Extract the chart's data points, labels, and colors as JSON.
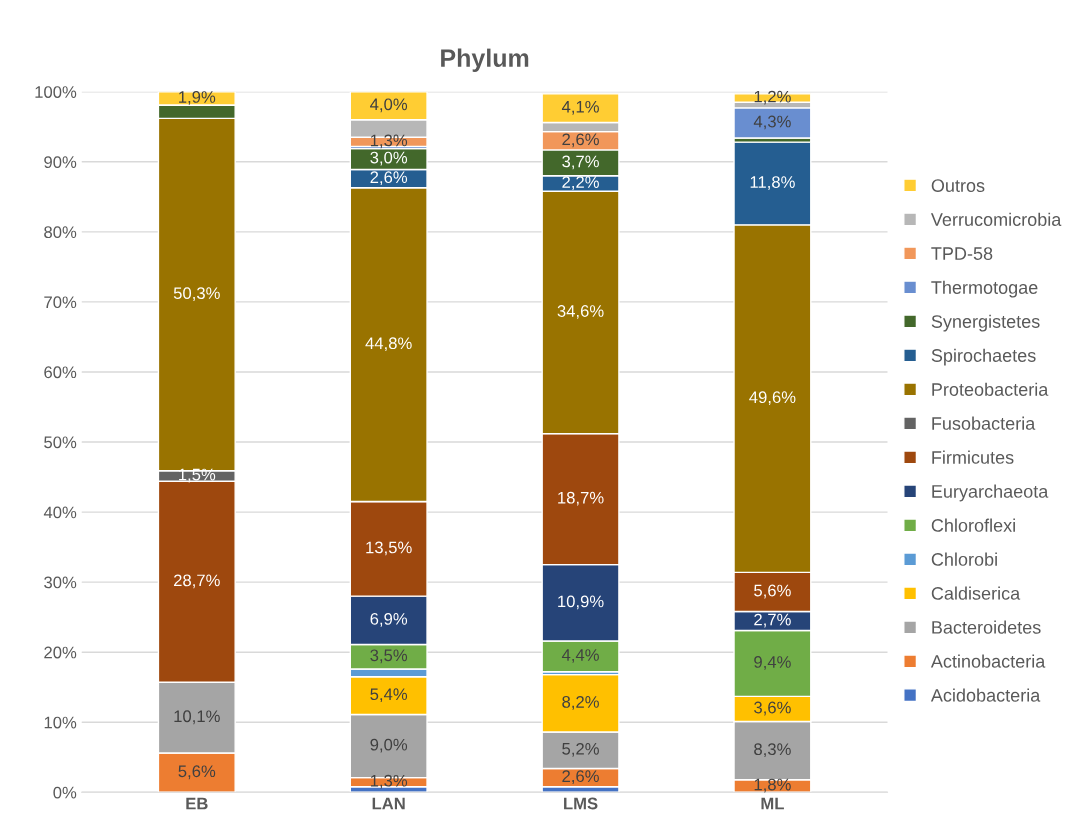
{
  "chart_data": {
    "type": "bar",
    "title": "Phylum",
    "stacked": true,
    "categories": [
      "EB",
      "LAN",
      "LMS",
      "ML"
    ],
    "ylim": [
      0,
      100
    ],
    "yticks": [
      {
        "value": 0,
        "label": "0%"
      },
      {
        "value": 10,
        "label": "10%"
      },
      {
        "value": 20,
        "label": "20%"
      },
      {
        "value": 30,
        "label": "30%"
      },
      {
        "value": 40,
        "label": "40%"
      },
      {
        "value": 50,
        "label": "50%"
      },
      {
        "value": 60,
        "label": "60%"
      },
      {
        "value": 70,
        "label": "70%"
      },
      {
        "value": 80,
        "label": "80%"
      },
      {
        "value": 90,
        "label": "90%"
      },
      {
        "value": 100,
        "label": "100%"
      }
    ],
    "grid": "y",
    "legend": "right",
    "series": [
      {
        "name": "Acidobacteria",
        "color": "#4472c4",
        "values": [
          0,
          0.8,
          0.8,
          0
        ],
        "value_labels": [
          null,
          null,
          null,
          null
        ]
      },
      {
        "name": "Actinobacteria",
        "color": "#ed7d31",
        "values": [
          5.6,
          1.3,
          2.6,
          1.8
        ],
        "value_labels": [
          "5,6%",
          "1,3%",
          "2,6%",
          "1,8%"
        ]
      },
      {
        "name": "Bacteroidetes",
        "color": "#a5a5a5",
        "values": [
          10.1,
          9.0,
          5.2,
          8.3
        ],
        "value_labels": [
          "10,1%",
          "9,0%",
          "5,2%",
          "8,3%"
        ]
      },
      {
        "name": "Caldiserica",
        "color": "#ffc000",
        "values": [
          0,
          5.4,
          8.2,
          3.6
        ],
        "value_labels": [
          null,
          "5,4%",
          "8,2%",
          "3,6%"
        ]
      },
      {
        "name": "Chlorobi",
        "color": "#5b9bd5",
        "values": [
          0,
          1.1,
          0.4,
          0
        ],
        "value_labels": [
          null,
          null,
          null,
          null
        ]
      },
      {
        "name": "Chloroflexi",
        "color": "#70ad47",
        "values": [
          0,
          3.5,
          4.4,
          9.4
        ],
        "value_labels": [
          null,
          "3,5%",
          "4,4%",
          "9,4%"
        ]
      },
      {
        "name": "Euryarchaeota",
        "color": "#264478",
        "values": [
          0,
          6.9,
          10.9,
          2.7
        ],
        "value_labels": [
          null,
          "6,9%",
          "10,9%",
          "2,7%"
        ]
      },
      {
        "name": "Firmicutes",
        "color": "#9e480e",
        "values": [
          28.7,
          13.5,
          18.7,
          5.6
        ],
        "value_labels": [
          "28,7%",
          "13,5%",
          "18,7%",
          "5,6%"
        ]
      },
      {
        "name": "Fusobacteria",
        "color": "#636363",
        "values": [
          1.5,
          0,
          0,
          0
        ],
        "value_labels": [
          "1,5%",
          null,
          null,
          null
        ]
      },
      {
        "name": "Proteobacteria",
        "color": "#997300",
        "values": [
          50.3,
          44.8,
          34.6,
          49.6
        ],
        "value_labels": [
          "50,3%",
          "44,8%",
          "34,6%",
          "49,6%"
        ]
      },
      {
        "name": "Spirochaetes",
        "color": "#255e91",
        "values": [
          0,
          2.6,
          2.2,
          11.8
        ],
        "value_labels": [
          null,
          "2,6%",
          "2,2%",
          "11,8%"
        ]
      },
      {
        "name": "Synergistetes",
        "color": "#43682b",
        "values": [
          1.9,
          3.0,
          3.7,
          0.6
        ],
        "value_labels": [
          null,
          "3,0%",
          "3,7%",
          null
        ]
      },
      {
        "name": "Thermotogae",
        "color": "#698ed0",
        "values": [
          0,
          0.3,
          null,
          4.3
        ],
        "value_labels": [
          null,
          null,
          null,
          "4,3%"
        ]
      },
      {
        "name": "TPD-58",
        "color": "#f1975a",
        "values": [
          0,
          1.3,
          2.6,
          null
        ],
        "value_labels": [
          null,
          "1,3%",
          "2,6%",
          null
        ]
      },
      {
        "name": "Verrucomicrobia",
        "color": "#b7b7b7",
        "values": [
          0,
          2.5,
          1.3,
          0.8
        ],
        "value_labels": [
          null,
          null,
          null,
          null
        ]
      },
      {
        "name": "Outros",
        "color": "#ffcd33",
        "values": [
          1.9,
          4.0,
          4.1,
          1.2
        ],
        "value_labels": [
          "1,9%",
          "4,0%",
          "4,1%",
          "1,2%"
        ]
      }
    ]
  }
}
